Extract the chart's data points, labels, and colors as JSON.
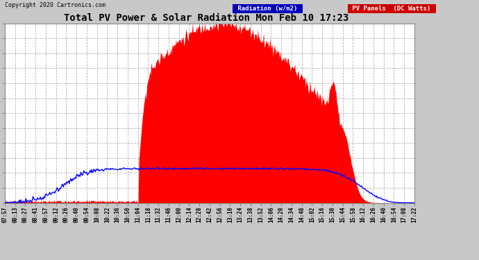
{
  "title": "Total PV Power & Solar Radiation Mon Feb 10 17:23",
  "copyright": "Copyright 2020 Cartronics.com",
  "background_color": "#c8c8c8",
  "plot_bg_color": "#ffffff",
  "yticks": [
    0.0,
    236.7,
    473.4,
    710.1,
    946.7,
    1183.4,
    1420.1,
    1656.8,
    1893.5,
    2130.2,
    2366.9,
    2603.6,
    2840.2
  ],
  "ymax": 2840.2,
  "legend_labels": [
    "Radiation (w/m2)",
    "PV Panels  (DC Watts)"
  ],
  "radiation_legend_bg": "#0000cc",
  "pv_legend_bg": "#cc0000",
  "pv_color": "#ff0000",
  "radiation_color": "#0000ff",
  "grid_color": "#888888",
  "xtick_labels": [
    "07:57",
    "08:13",
    "08:27",
    "08:41",
    "08:57",
    "09:12",
    "09:26",
    "09:40",
    "09:54",
    "10:08",
    "10:22",
    "10:36",
    "10:50",
    "11:04",
    "11:18",
    "11:32",
    "11:46",
    "12:00",
    "12:14",
    "12:28",
    "12:42",
    "12:56",
    "13:10",
    "13:24",
    "13:38",
    "13:52",
    "14:06",
    "14:20",
    "14:34",
    "14:48",
    "15:02",
    "15:16",
    "15:30",
    "15:44",
    "15:58",
    "16:12",
    "16:26",
    "16:40",
    "16:54",
    "17:08",
    "17:22"
  ]
}
